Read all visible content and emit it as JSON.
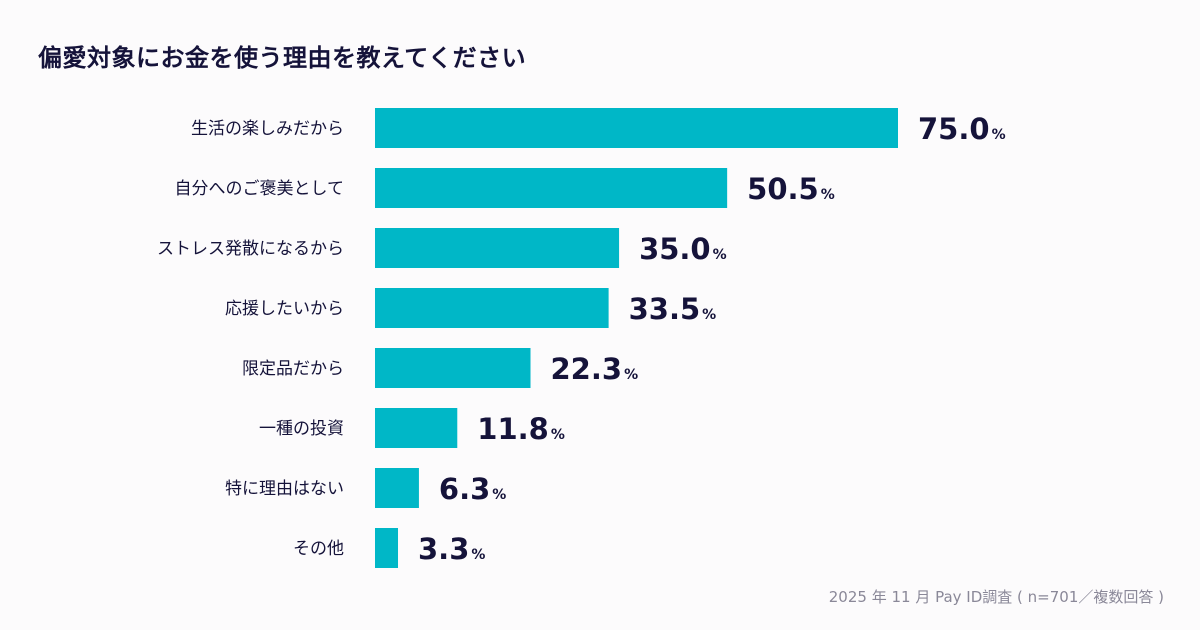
{
  "title": "偏愛対象にお金を使う理由を教えてください",
  "note": "2025 年 11 月 Pay ID調査 ( n=701／複数回答 )",
  "colors": {
    "bar": "#00b7c7",
    "text": "#15133a",
    "note": "#8a8898"
  },
  "chart_data": {
    "type": "bar",
    "orientation": "horizontal",
    "title": "偏愛対象にお金を使う理由を教えてください",
    "categories": [
      "生活の楽しみだから",
      "自分へのご褒美として",
      "ストレス発散になるから",
      "応援したいから",
      "限定品だから",
      "一種の投資",
      "特に理由はない",
      "その他"
    ],
    "values": [
      75.0,
      50.5,
      35.0,
      33.5,
      22.3,
      11.8,
      6.3,
      3.3
    ],
    "value_suffix": "%",
    "xlim": [
      0,
      100
    ],
    "grid": false
  }
}
